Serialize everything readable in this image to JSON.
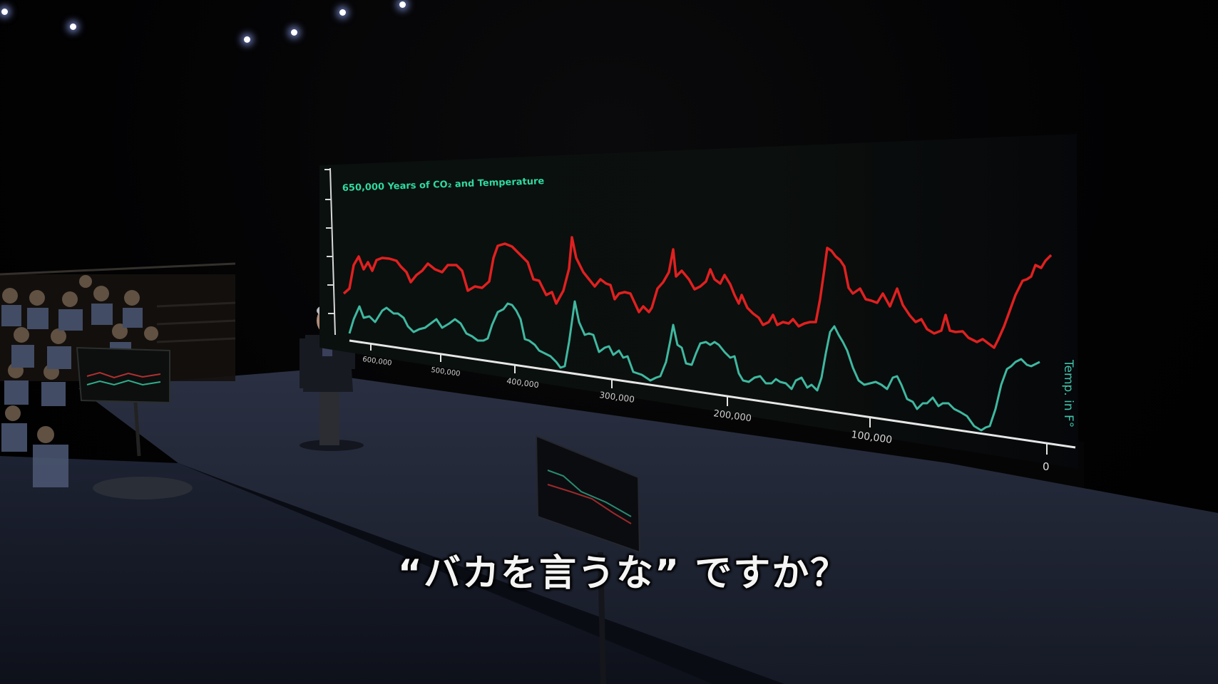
{
  "subtitle": "“バカを言うな” ですか？",
  "screen": {
    "title": "650,000 Years of CO₂ and Temperature",
    "right_label": "Temp. in F°",
    "x_tick_labels": [
      "600,000",
      "500,000",
      "400,000",
      "300,000",
      "200,000",
      "100,000",
      "0"
    ]
  },
  "colors": {
    "co2_line": "#e02020",
    "temp_line": "#3fb8a0",
    "title_text": "#2fd9a0",
    "axis": "#e8e8e8"
  }
}
